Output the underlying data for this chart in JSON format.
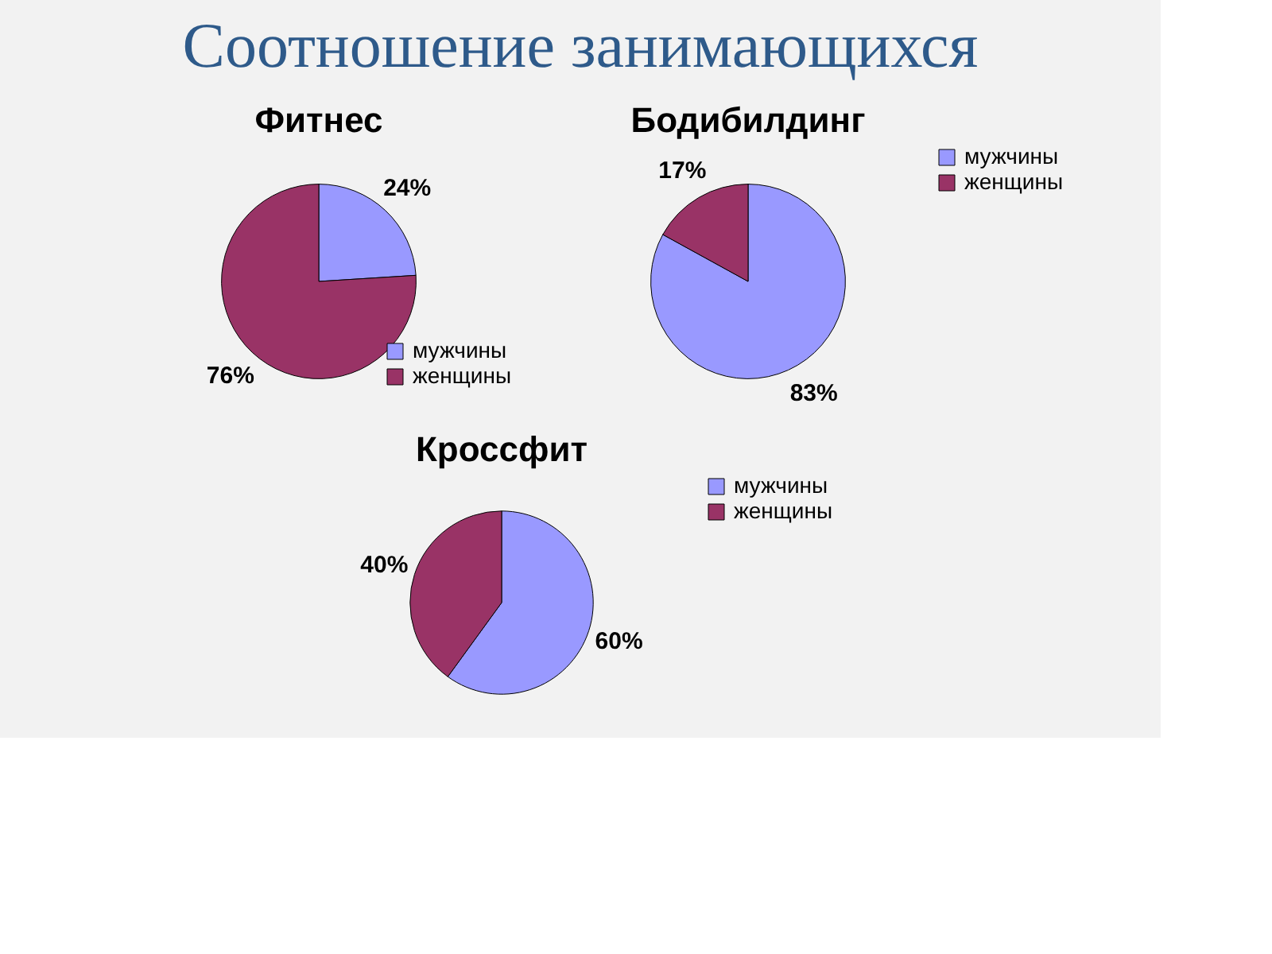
{
  "chart_data": [
    {
      "type": "pie",
      "title": "Фитнес",
      "annotations": [
        "Соотношение занимающихся"
      ],
      "categories": [
        "мужчины",
        "женщины"
      ],
      "values": [
        24,
        76
      ],
      "colors": [
        "#9999ff",
        "#993366"
      ],
      "value_labels": [
        "24%",
        "76%"
      ],
      "legend": "bottom right"
    },
    {
      "type": "pie",
      "title": "Бодибилдинг",
      "categories": [
        "мужчины",
        "женщины"
      ],
      "values": [
        83,
        17
      ],
      "colors": [
        "#9999ff",
        "#993366"
      ],
      "value_labels": [
        "83%",
        "17%"
      ],
      "legend": "right"
    },
    {
      "type": "pie",
      "title": "Кроссфит",
      "categories": [
        "мужчины",
        "женщины"
      ],
      "values": [
        60,
        40
      ],
      "colors": [
        "#9999ff",
        "#993366"
      ],
      "value_labels": [
        "60%",
        "40%"
      ],
      "legend": "right"
    }
  ]
}
